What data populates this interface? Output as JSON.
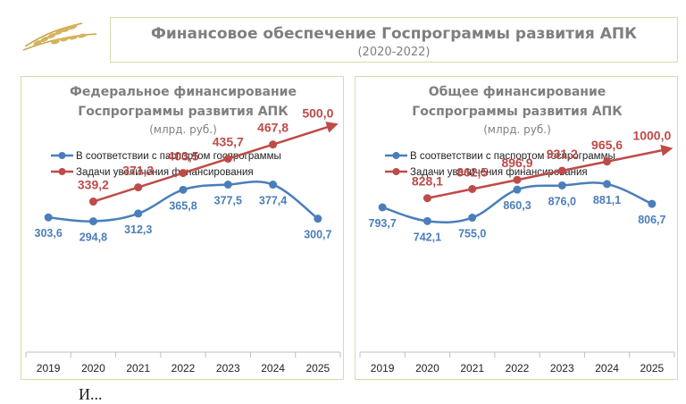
{
  "header": {
    "title": "Финансовое обеспечение Госпрограммы развития АПК",
    "subtitle": "(2020-2022)",
    "logo_icon": "wheat-ears-icon"
  },
  "colors": {
    "passport": "#4a7ebb",
    "target": "#be4b48",
    "title_text": "#7f7f7f",
    "border": "#d6dcaa"
  },
  "chart_data": [
    {
      "type": "line",
      "title_line1": "Федеральное финансирование",
      "title_line2": "Госпрограммы развития АПК",
      "unit": "(млрд. руб.)",
      "legend_position": "top-left",
      "categories": [
        "2019",
        "2020",
        "2021",
        "2022",
        "2023",
        "2024",
        "2025"
      ],
      "ylim": [
        0,
        600
      ],
      "series": [
        {
          "name": "В соответствии с паспортом госпрограммы",
          "values": [
            303.6,
            294.8,
            312.3,
            365.8,
            377.5,
            377.4,
            300.7
          ],
          "labels": [
            "303,6",
            "294,8",
            "312,3",
            "365,8",
            "377,5",
            "377,4",
            "300,7"
          ]
        },
        {
          "name": "Задачи увеличения финансирования",
          "values": [
            null,
            339.2,
            371.3,
            403.5,
            435.7,
            467.8,
            500.0
          ],
          "labels": [
            null,
            "339,2",
            "371,3",
            "403,5",
            "435,7",
            "467,8",
            "500,0"
          ]
        }
      ]
    },
    {
      "type": "line",
      "title_line1": "Общее финансирование",
      "title_line2": "Госпрограммы развития АПК",
      "unit": "(млрд. руб.)",
      "legend_position": "top-left",
      "categories": [
        "2019",
        "2020",
        "2021",
        "2022",
        "2023",
        "2024",
        "2025"
      ],
      "ylim": [
        250,
        1250
      ],
      "series": [
        {
          "name": "В соответствии с паспортом госпрограммы",
          "values": [
            793.7,
            742.1,
            755.0,
            860.3,
            876.0,
            881.1,
            806.7
          ],
          "labels": [
            "793,7",
            "742,1",
            "755,0",
            "860,3",
            "876,0",
            "881,1",
            "806,7"
          ]
        },
        {
          "name": "Задачи увеличения финансирования",
          "values": [
            null,
            828.1,
            862.5,
            896.9,
            931.2,
            965.6,
            1000.0
          ],
          "labels": [
            null,
            "828,1",
            "862,5",
            "896,9",
            "931,2",
            "965,6",
            "1000,0"
          ]
        }
      ]
    }
  ],
  "bottom_text": "И..."
}
